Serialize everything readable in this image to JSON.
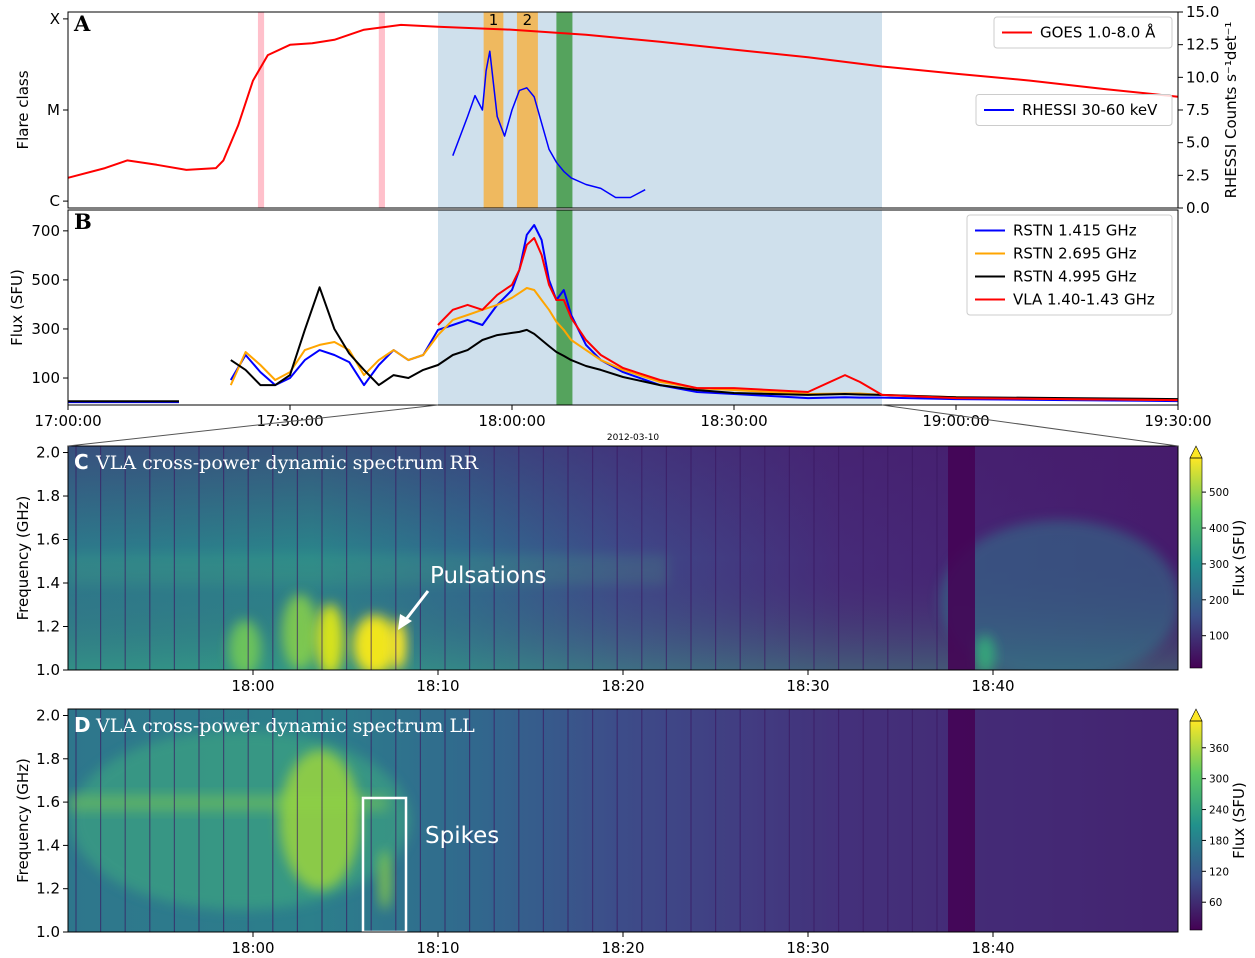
{
  "chart_data": [
    {
      "type": "line",
      "panel_label": "A",
      "ylabel": "Flare class",
      "y2label": "RHESSI Counts s⁻¹det⁻¹",
      "xlim": [
        "17:00:00",
        "19:30:00"
      ],
      "ylog": true,
      "ylim": [
        8.4e-07,
        0.000119
      ],
      "yticks": [
        {
          "value": 1e-06,
          "label": "C"
        },
        {
          "value": 1e-05,
          "label": "M"
        },
        {
          "value": 0.0001,
          "label": "X"
        }
      ],
      "y2lim": [
        0,
        15
      ],
      "y2ticks": [
        {
          "value": 0,
          "label": "0.0"
        },
        2.5,
        {
          "value": 5,
          "label": "5.0"
        },
        7.5,
        {
          "value": 10,
          "label": "10.0"
        },
        12.5,
        {
          "value": 15,
          "label": "15.0"
        }
      ],
      "spans": [
        {
          "start": "17:50:00",
          "end": "18:50:00",
          "color": "#cfe0ec"
        },
        {
          "start": "17:25:40",
          "end": "17:26:30",
          "color": "#ffc0cb"
        },
        {
          "start": "17:42:00",
          "end": "17:42:50",
          "color": "#ffc0cb"
        },
        {
          "start": "17:56:10",
          "end": "17:58:50",
          "color": "#efb95f",
          "label": "1"
        },
        {
          "start": "18:00:40",
          "end": "18:03:30",
          "color": "#efb95f",
          "label": "2"
        },
        {
          "start": "18:06:00",
          "end": "18:08:10",
          "color": "#55a35d"
        }
      ],
      "series": [
        {
          "name": "GOES 1.0-8.0 Å",
          "color": "#ff0000",
          "legend": "upper right",
          "x": [
            "17:00",
            "17:05",
            "17:08",
            "17:12",
            "17:16",
            "17:20",
            "17:21",
            "17:23",
            "17:25",
            "17:27",
            "17:30",
            "17:33",
            "17:36",
            "17:40",
            "17:45",
            "17:50",
            "18:00",
            "18:10",
            "18:20",
            "18:30",
            "18:40",
            "18:50",
            "19:00",
            "19:10",
            "19:20",
            "19:30"
          ],
          "values": [
            1.8e-06,
            2.3e-06,
            2.8e-06,
            2.5e-06,
            2.2e-06,
            2.3e-06,
            2.8e-06,
            6.8e-06,
            2.1e-05,
            4e-05,
            5.2e-05,
            5.4e-05,
            5.9e-05,
            7.6e-05,
            8.6e-05,
            8.2e-05,
            7.6e-05,
            6.7e-05,
            5.6e-05,
            4.6e-05,
            3.8e-05,
            3e-05,
            2.5e-05,
            2.1e-05,
            1.7e-05,
            1.4e-05
          ]
        },
        {
          "name": "RHESSI 30-60 keV",
          "color": "#0000ff",
          "axis": "y2",
          "legend": "center right",
          "x": [
            "17:52",
            "17:53",
            "17:54",
            "17:55",
            "17:56",
            "17:56:30",
            "17:57",
            "17:57:30",
            "17:58",
            "17:59",
            "18:00",
            "18:01",
            "18:02",
            "18:03",
            "18:04",
            "18:05",
            "18:06",
            "18:07",
            "18:08",
            "18:10",
            "18:12",
            "18:14",
            "18:16",
            "18:18"
          ],
          "values": [
            4.0,
            5.5,
            7.0,
            8.6,
            7.5,
            10.5,
            12.0,
            9.5,
            7.0,
            5.5,
            7.5,
            9.0,
            9.2,
            8.5,
            6.5,
            4.5,
            3.5,
            2.8,
            2.3,
            1.8,
            1.5,
            0.8,
            0.8,
            1.4
          ]
        }
      ]
    },
    {
      "type": "line",
      "panel_label": "B",
      "ylabel": "Flux (SFU)",
      "date_label": "2012-03-10",
      "xlim": [
        "17:00:00",
        "19:30:00"
      ],
      "xticks": [
        "17:00:00",
        "17:30:00",
        "18:00:00",
        "18:30:00",
        "19:00:00",
        "19:30:00"
      ],
      "ylim": [
        -10,
        785
      ],
      "yticks": [
        100,
        300,
        500,
        700
      ],
      "legend": "upper right",
      "spans": [
        {
          "start": "17:50:00",
          "end": "18:50:00",
          "color": "#cfe0ec"
        },
        {
          "start": "18:06:00",
          "end": "18:08:10",
          "color": "#55a35d"
        }
      ],
      "x": [
        "17:00",
        "17:05",
        "17:10",
        "17:15",
        "17:18",
        "17:22",
        "17:24",
        "17:26",
        "17:28",
        "17:30",
        "17:32",
        "17:34",
        "17:36",
        "17:38",
        "17:40",
        "17:42",
        "17:44",
        "17:46",
        "17:48",
        "17:50",
        "17:52",
        "17:54",
        "17:56",
        "17:58",
        "18:00",
        "18:01",
        "18:02",
        "18:03",
        "18:04",
        "18:05",
        "18:06",
        "18:07",
        "18:08",
        "18:10",
        "18:12",
        "18:15",
        "18:20",
        "18:25",
        "18:30",
        "18:40",
        "18:45",
        "18:47",
        "18:50",
        "19:00",
        "19:15",
        "19:30"
      ],
      "series": [
        {
          "name": "RSTN 1.415 GHz",
          "color": "#0000ff",
          "values": [
            2,
            2,
            2,
            2,
            null,
            92,
            194,
            124,
            71,
            100,
            173,
            214,
            194,
            165,
            71,
            153,
            214,
            173,
            194,
            296,
            316,
            337,
            316,
            398,
            459,
            541,
            684,
            724,
            663,
            500,
            418,
            459,
            357,
            235,
            173,
            124,
            71,
            43,
            35,
            18,
            22,
            20,
            20,
            14,
            10,
            6
          ]
        },
        {
          "name": "RSTN 2.695 GHz",
          "color": "#ffa500",
          "values": [
            null,
            null,
            null,
            null,
            null,
            71,
            206,
            153,
            92,
            124,
            214,
            235,
            247,
            214,
            112,
            173,
            214,
            173,
            194,
            275,
            337,
            357,
            378,
            398,
            427,
            447,
            467,
            459,
            418,
            378,
            329,
            296,
            255,
            214,
            173,
            133,
            84,
            59,
            51,
            35,
            37,
            37,
            31,
            22,
            14,
            10
          ]
        },
        {
          "name": "RSTN 4.995 GHz",
          "color": "#000000",
          "values": [
            5,
            5,
            5,
            5,
            null,
            173,
            133,
            71,
            71,
            112,
            296,
            470,
            300,
            200,
            133,
            71,
            112,
            100,
            133,
            153,
            194,
            214,
            255,
            275,
            284,
            288,
            296,
            280,
            255,
            230,
            206,
            190,
            173,
            149,
            133,
            104,
            71,
            51,
            39,
            31,
            35,
            33,
            31,
            22,
            18,
            14
          ]
        },
        {
          "name": "VLA 1.40-1.43 GHz",
          "color": "#ff0000",
          "values": [
            null,
            null,
            null,
            null,
            null,
            null,
            null,
            null,
            null,
            null,
            null,
            null,
            null,
            null,
            null,
            null,
            null,
            null,
            null,
            316,
            378,
            398,
            378,
            439,
            480,
            541,
            643,
            671,
            602,
            480,
            418,
            418,
            345,
            255,
            194,
            141,
            92,
            59,
            59,
            43,
            112,
            84,
            31,
            18,
            14,
            10
          ]
        }
      ]
    },
    {
      "type": "spectrogram",
      "panel_label": "C",
      "title": "VLA cross-power dynamic spectrum RR",
      "ylabel": "Frequency (GHz)",
      "xlim": [
        "17:50",
        "18:50"
      ],
      "xticks": [
        "18:00",
        "18:10",
        "18:20",
        "18:30",
        "18:40"
      ],
      "ylim": [
        1.0,
        2.03
      ],
      "yticks": [
        {
          "value": 1.0,
          "label": "1.0"
        },
        1.2,
        1.4,
        1.6,
        1.8,
        {
          "value": 2.0,
          "label": "2.0"
        }
      ],
      "clim": [
        10,
        595
      ],
      "cticks": [
        100,
        200,
        300,
        400,
        500
      ],
      "clabel": "Flux (SFU)",
      "annotation": "Pulsations"
    },
    {
      "type": "spectrogram",
      "panel_label": "D",
      "title": "VLA cross-power dynamic spectrum LL",
      "ylabel": "Frequency (GHz)",
      "xlim": [
        "17:50",
        "18:50"
      ],
      "xticks": [
        "18:00",
        "18:10",
        "18:20",
        "18:30",
        "18:40"
      ],
      "ylim": [
        1.0,
        2.03
      ],
      "yticks": [
        {
          "value": 1.0,
          "label": "1.0"
        },
        1.2,
        1.4,
        1.6,
        1.8,
        {
          "value": 2.0,
          "label": "2.0"
        }
      ],
      "clim": [
        6,
        412
      ],
      "cticks": [
        60,
        120,
        180,
        240,
        300,
        360
      ],
      "clabel": "Flux (SFU)",
      "annotation": "Spikes"
    }
  ]
}
